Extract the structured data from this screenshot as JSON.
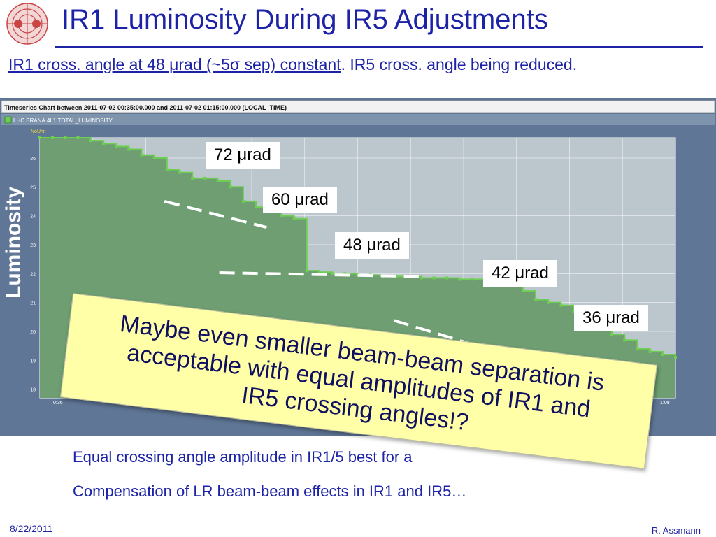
{
  "slide": {
    "title": "IR1 Luminosity During IR5 Adjustments",
    "subtitle_underlined": "IR1 cross. angle at 48 μrad (~5σ sep) constant",
    "subtitle_rest": ". IR5 cross. angle being reduced.",
    "side_label": "Luminosity",
    "footer_date": "8/22/2011",
    "footer_author": "R. Assmann",
    "bullets": [
      "Equal crossing angle amplitude in IR1/5 best for a",
      "Compensation of LR beam-beam effects in IR1 and IR5…"
    ]
  },
  "annotations": [
    "72 μrad",
    "60 μrad",
    "48 μrad",
    "42 μrad",
    "36 μrad"
  ],
  "callout": {
    "line1": "Maybe even smaller beam-beam separation is",
    "line2": "acceptable with equal amplitudes of IR1 and",
    "line3": "IR5 crossing angles!?"
  },
  "colors": {
    "title": "#1d23a7",
    "panel_bg": "#5f7696",
    "plot_bg": "#bcc6cd",
    "series_fill": "#6e9e72",
    "series_line": "#6ccf52",
    "callout_bg": "#ffffa8"
  },
  "chart_data": {
    "type": "area",
    "header": "Timeseries Chart between 2011-07-02 00:35:00.000 and 2011-07-02 01:15:00.000 (LOCAL_TIME)",
    "series_name": "LHC.BRANA.4L1:TOTAL_LUMINOSITY",
    "unit_label": "NoUnit",
    "ylim": [
      17.7,
      26.7
    ],
    "y_ticks": [
      "18",
      "19",
      "20",
      "21",
      "22",
      "23",
      "24",
      "25",
      "26"
    ],
    "x_tick_first": "0:36",
    "x_tick_last": "1:08",
    "grid": true,
    "series": [
      {
        "name": "LHC.BRANA.4L1:TOTAL_LUMINOSITY",
        "x": [
          0,
          2,
          4,
          6,
          8,
          10,
          12,
          14,
          16,
          18,
          20,
          22,
          24,
          26,
          28,
          30,
          32,
          34,
          36,
          38,
          40,
          42,
          44,
          46,
          48,
          50,
          52,
          54,
          56,
          58,
          60,
          62,
          64,
          66,
          68,
          70,
          72,
          74,
          76,
          78,
          80,
          82,
          84,
          86,
          88,
          90,
          92,
          94,
          96,
          98,
          100
        ],
        "values": [
          26.9,
          26.85,
          26.8,
          26.75,
          26.6,
          26.5,
          26.4,
          26.3,
          26.1,
          26.0,
          25.6,
          25.5,
          25.3,
          25.3,
          25.2,
          25.0,
          24.5,
          24.3,
          24.2,
          24.0,
          23.9,
          22.1,
          22.05,
          22.0,
          22.0,
          21.95,
          21.95,
          21.9,
          21.9,
          21.9,
          21.85,
          21.85,
          21.85,
          21.8,
          21.8,
          21.85,
          21.9,
          21.8,
          21.4,
          21.1,
          21.0,
          20.9,
          20.7,
          20.4,
          20.1,
          19.9,
          19.7,
          19.4,
          19.3,
          19.2,
          19.1
        ]
      }
    ],
    "trend_lines": [
      {
        "x": [
          50,
          91
        ],
        "values": [
          24.5,
          23.6
        ]
      },
      {
        "x": [
          72,
          152
        ],
        "values": [
          22.03,
          21.9
        ]
      },
      {
        "x": [
          142,
          208
        ],
        "values": [
          20.38,
          18.65
        ]
      }
    ]
  }
}
